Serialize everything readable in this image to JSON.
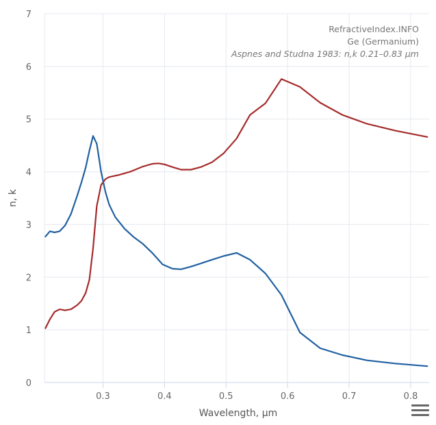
{
  "credits": {
    "site": "RefractiveIndex.INFO",
    "material": "Ge (Germanium)",
    "source": "Aspnes and Studna 1983: n,k 0.21–0.83 µm"
  },
  "menu": {
    "icon": "hamburger-menu-icon"
  },
  "chart_data": {
    "type": "line",
    "xlabel": "Wavelength, µm",
    "ylabel": "n, k",
    "xlim": [
      0.205,
      0.83
    ],
    "ylim": [
      0,
      7
    ],
    "x_ticks": [
      0.3,
      0.4,
      0.5,
      0.6,
      0.7,
      0.8
    ],
    "x_tick_labels": [
      "0.3",
      "0.4",
      "0.5",
      "0.6",
      "0.7",
      "0.8"
    ],
    "y_ticks": [
      0,
      1,
      2,
      3,
      4,
      5,
      6,
      7
    ],
    "y_tick_labels": [
      "0",
      "1",
      "2",
      "3",
      "4",
      "5",
      "6",
      "7"
    ],
    "grid": true,
    "series": [
      {
        "color": "#a52a2a",
        "points": [
          [
            0.2066,
            1.03
          ],
          [
            0.2138,
            1.2
          ],
          [
            0.2214,
            1.34
          ],
          [
            0.2296,
            1.39
          ],
          [
            0.2384,
            1.37
          ],
          [
            0.248,
            1.39
          ],
          [
            0.2583,
            1.47
          ],
          [
            0.265,
            1.55
          ],
          [
            0.272,
            1.7
          ],
          [
            0.278,
            1.95
          ],
          [
            0.284,
            2.55
          ],
          [
            0.29,
            3.35
          ],
          [
            0.297,
            3.75
          ],
          [
            0.304,
            3.86
          ],
          [
            0.31,
            3.9
          ],
          [
            0.326,
            3.94
          ],
          [
            0.344,
            4.0
          ],
          [
            0.365,
            4.1
          ],
          [
            0.38,
            4.15
          ],
          [
            0.39,
            4.16
          ],
          [
            0.4,
            4.14
          ],
          [
            0.413,
            4.09
          ],
          [
            0.427,
            4.04
          ],
          [
            0.443,
            4.04
          ],
          [
            0.459,
            4.09
          ],
          [
            0.477,
            4.18
          ],
          [
            0.496,
            4.35
          ],
          [
            0.517,
            4.63
          ],
          [
            0.539,
            5.08
          ],
          [
            0.564,
            5.3
          ],
          [
            0.59,
            5.76
          ],
          [
            0.62,
            5.61
          ],
          [
            0.653,
            5.31
          ],
          [
            0.689,
            5.08
          ],
          [
            0.729,
            4.91
          ],
          [
            0.775,
            4.78
          ],
          [
            0.827,
            4.66
          ]
        ]
      },
      {
        "color": "#1f5fa0",
        "points": [
          [
            0.2066,
            2.77
          ],
          [
            0.2138,
            2.87
          ],
          [
            0.2214,
            2.85
          ],
          [
            0.2296,
            2.87
          ],
          [
            0.2384,
            2.98
          ],
          [
            0.248,
            3.2
          ],
          [
            0.2583,
            3.55
          ],
          [
            0.265,
            3.8
          ],
          [
            0.272,
            4.08
          ],
          [
            0.278,
            4.4
          ],
          [
            0.284,
            4.68
          ],
          [
            0.29,
            4.53
          ],
          [
            0.297,
            4.0
          ],
          [
            0.304,
            3.62
          ],
          [
            0.31,
            3.38
          ],
          [
            0.32,
            3.14
          ],
          [
            0.335,
            2.92
          ],
          [
            0.35,
            2.76
          ],
          [
            0.365,
            2.63
          ],
          [
            0.38,
            2.46
          ],
          [
            0.397,
            2.24
          ],
          [
            0.413,
            2.16
          ],
          [
            0.427,
            2.15
          ],
          [
            0.443,
            2.2
          ],
          [
            0.459,
            2.26
          ],
          [
            0.477,
            2.33
          ],
          [
            0.496,
            2.4
          ],
          [
            0.517,
            2.46
          ],
          [
            0.539,
            2.33
          ],
          [
            0.564,
            2.07
          ],
          [
            0.59,
            1.66
          ],
          [
            0.62,
            0.95
          ],
          [
            0.653,
            0.65
          ],
          [
            0.689,
            0.52
          ],
          [
            0.729,
            0.42
          ],
          [
            0.775,
            0.36
          ],
          [
            0.827,
            0.31
          ]
        ]
      }
    ]
  }
}
